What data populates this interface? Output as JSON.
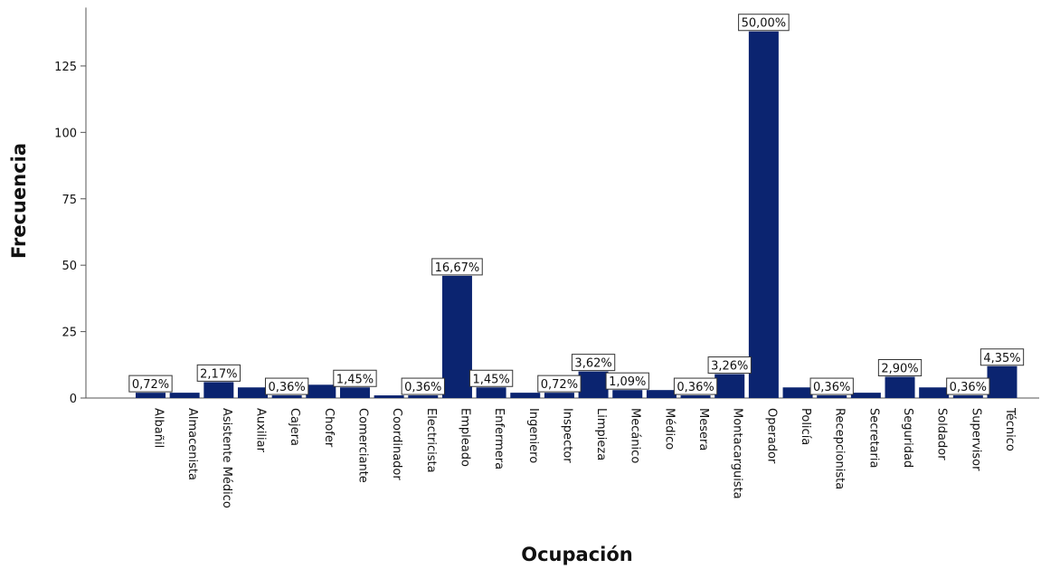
{
  "chart_data": {
    "type": "bar",
    "xlabel": "Ocupación",
    "ylabel": "Frecuencia",
    "ylim": [
      0,
      147
    ],
    "yticks": [
      0,
      25,
      50,
      75,
      100,
      125
    ],
    "grid": false,
    "bar_color": "#0b2470",
    "categories": [
      "Albañil",
      "Almacenista",
      "Asistente Médico",
      "Auxiliar",
      "Cajera",
      "Chofer",
      "Comerciante",
      "Coordinador",
      "Electricista",
      "Empleado",
      "Enfermera",
      "Ingeniero",
      "Inspector",
      "Limpieza",
      "Mecánico",
      "Médico",
      "Mesera",
      "Montacarguista",
      "Operador",
      "Policía",
      "Recepcionista",
      "Secretaria",
      "Seguridad",
      "Soldador",
      "Supervisor",
      "Técnico"
    ],
    "values": [
      2,
      2,
      6,
      4,
      1,
      5,
      4,
      1,
      1,
      46,
      4,
      2,
      2,
      10,
      3,
      3,
      1,
      9,
      138,
      4,
      1,
      2,
      8,
      4,
      1,
      12
    ],
    "data_labels": [
      "0,72%",
      null,
      "2,17%",
      null,
      "0,36%",
      null,
      "1,45%",
      null,
      "0,36%",
      "16,67%",
      "1,45%",
      null,
      "0,72%",
      "3,62%",
      "1,09%",
      null,
      "0,36%",
      "3,26%",
      "50,00%",
      null,
      "0,36%",
      null,
      "2,90%",
      null,
      "0,36%",
      "4,35%"
    ]
  }
}
